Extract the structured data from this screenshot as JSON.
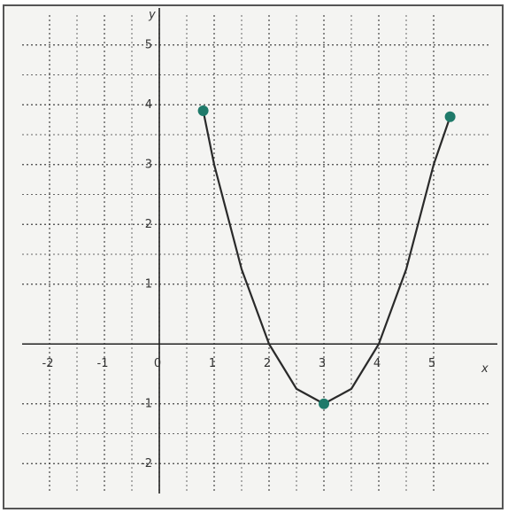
{
  "chart_data": {
    "type": "line",
    "xlabel": "x",
    "ylabel": "y",
    "x": [
      0.8,
      1,
      1.5,
      2,
      2.5,
      3,
      3.5,
      4,
      4.5,
      5,
      5.3
    ],
    "series": [
      {
        "color": "#2a2a2a",
        "values": [
          3.9,
          3.0,
          1.25,
          0,
          -0.75,
          -1,
          -0.75,
          0,
          1.25,
          3,
          3.8
        ]
      }
    ],
    "points": {
      "x": [
        0.8,
        3,
        5.3
      ],
      "y": [
        3.9,
        -1,
        3.8
      ],
      "color": "#1f7a6a"
    },
    "xlim": [
      -2.5,
      6
    ],
    "ylim": [
      -2.5,
      5.5
    ],
    "xticks": [
      -2,
      -1,
      0,
      1,
      2,
      3,
      4,
      5
    ],
    "yticks": [
      -2,
      -1,
      1,
      2,
      3,
      4,
      5
    ],
    "grid": true
  }
}
